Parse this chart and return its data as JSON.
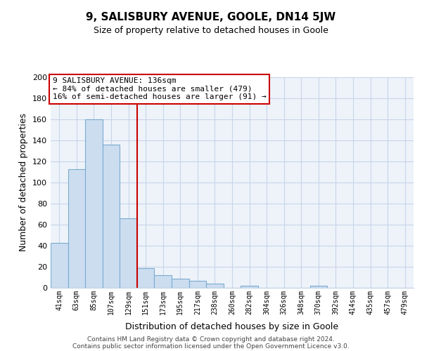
{
  "title": "9, SALISBURY AVENUE, GOOLE, DN14 5JW",
  "subtitle": "Size of property relative to detached houses in Goole",
  "xlabel": "Distribution of detached houses by size in Goole",
  "ylabel": "Number of detached properties",
  "bar_labels": [
    "41sqm",
    "63sqm",
    "85sqm",
    "107sqm",
    "129sqm",
    "151sqm",
    "173sqm",
    "195sqm",
    "217sqm",
    "238sqm",
    "260sqm",
    "282sqm",
    "304sqm",
    "326sqm",
    "348sqm",
    "370sqm",
    "392sqm",
    "414sqm",
    "435sqm",
    "457sqm",
    "479sqm"
  ],
  "bar_values": [
    43,
    113,
    160,
    136,
    66,
    19,
    12,
    9,
    7,
    4,
    0,
    2,
    0,
    0,
    0,
    2,
    0,
    0,
    0,
    0,
    0
  ],
  "bar_color": "#ccddf0",
  "bar_edge_color": "#7aabcf",
  "vline_x": 4.5,
  "vline_color": "#cc0000",
  "ylim": [
    0,
    200
  ],
  "yticks": [
    0,
    20,
    40,
    60,
    80,
    100,
    120,
    140,
    160,
    180,
    200
  ],
  "annotation_title": "9 SALISBURY AVENUE: 136sqm",
  "annotation_line1": "← 84% of detached houses are smaller (479)",
  "annotation_line2": "16% of semi-detached houses are larger (91) →",
  "annotation_box_color": "#ffffff",
  "annotation_box_edge": "#cc0000",
  "footer_line1": "Contains HM Land Registry data © Crown copyright and database right 2024.",
  "footer_line2": "Contains public sector information licensed under the Open Government Licence v3.0.",
  "plot_bg_color": "#eef3fa",
  "background_color": "#ffffff",
  "grid_color": "#c8d4e8"
}
